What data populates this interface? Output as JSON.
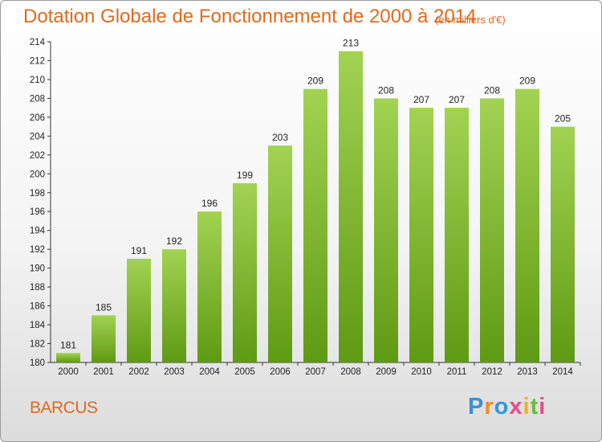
{
  "header": {
    "title": "Dotation Globale de Fonctionnement de 2000 à 2014",
    "subtitle": "(en milliers d'€)"
  },
  "footer": {
    "commune": "BARCUS",
    "logo_text": "Proxiti"
  },
  "colors": {
    "accent": "#e06a1e",
    "bar_top": "#a2d352",
    "bar_bottom": "#5f9a14"
  },
  "chart_data": {
    "type": "bar",
    "title": "Dotation Globale de Fonctionnement de 2000 à 2014",
    "subtitle": "(en milliers d'€)",
    "xlabel": "",
    "ylabel": "",
    "categories": [
      "2000",
      "2001",
      "2002",
      "2003",
      "2004",
      "2005",
      "2006",
      "2007",
      "2008",
      "2009",
      "2010",
      "2011",
      "2012",
      "2013",
      "2014"
    ],
    "values": [
      181,
      185,
      191,
      192,
      196,
      199,
      203,
      209,
      213,
      208,
      207,
      207,
      208,
      209,
      205
    ],
    "ylim": [
      180,
      214
    ],
    "yticks": [
      180,
      182,
      184,
      186,
      188,
      190,
      192,
      194,
      196,
      198,
      200,
      202,
      204,
      206,
      208,
      210,
      212,
      214
    ],
    "grid": false,
    "data_labels": true
  }
}
